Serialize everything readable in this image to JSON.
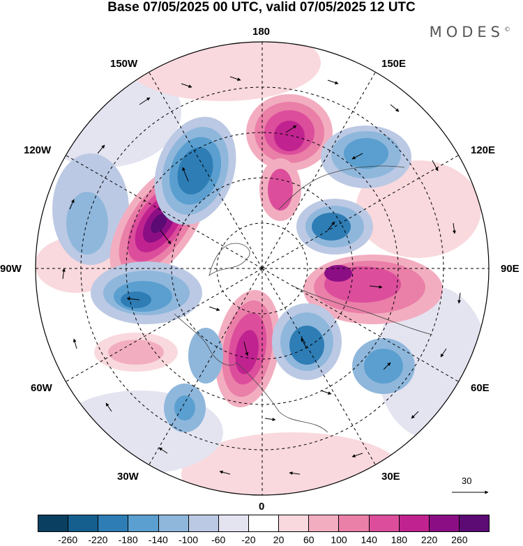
{
  "title": "Base 07/05/2025 00 UTC, valid 07/05/2025 12 UTC",
  "brand": "MODES",
  "brand_mark": "©",
  "longitude_labels": {
    "top": "180",
    "top_right": "150E",
    "upper_right": "120E",
    "right": "90E",
    "lower_right": "60E",
    "bottom_right": "30E",
    "bottom": "0",
    "bottom_left": "30W",
    "lower_left": "60W",
    "left": "90W",
    "upper_left": "120W",
    "top_left": "150W"
  },
  "reference_vector": {
    "value": "30"
  },
  "colorbar": {
    "colors": [
      "#0b3f62",
      "#155f8f",
      "#2e7db5",
      "#5a9fcf",
      "#8fb7dc",
      "#bcc9e4",
      "#e4e4f1",
      "#ffffff",
      "#f9d9dd",
      "#f2aec0",
      "#ea7fa8",
      "#dc4e9c",
      "#c0238f",
      "#8c0e85",
      "#5c0b74"
    ],
    "tick_labels": [
      "-260",
      "-220",
      "-180",
      "-140",
      "-100",
      "-60",
      "-20",
      "20",
      "60",
      "100",
      "140",
      "180",
      "220",
      "260"
    ]
  }
}
